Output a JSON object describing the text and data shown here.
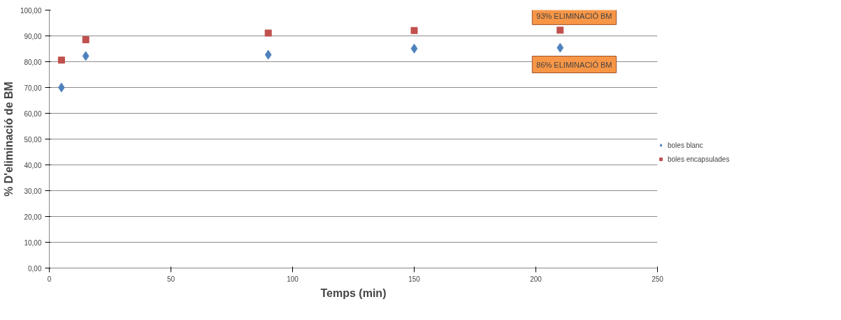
{
  "chart_data": {
    "type": "scatter",
    "xlabel": "Temps (min)",
    "ylabel": "% D'eliminació de BM",
    "series": [
      {
        "name": "boles blanc",
        "color": "#4f81bd",
        "marker": "diamond",
        "x": [
          5,
          15,
          90,
          150,
          210
        ],
        "values": [
          70,
          82.2,
          82.7,
          85.1,
          85.4
        ]
      },
      {
        "name": "boles encapsulades",
        "color": "#c0504d",
        "marker": "square",
        "x": [
          5,
          15,
          90,
          150,
          210
        ],
        "values": [
          80.6,
          88.5,
          91.1,
          92.1,
          92.2
        ]
      }
    ],
    "xlim": [
      0,
      250
    ],
    "xticks": [
      0,
      50,
      100,
      150,
      200,
      250
    ],
    "ylim": [
      0,
      100
    ],
    "yticks": [
      {
        "value": 0,
        "label": "0,00"
      },
      {
        "value": 10,
        "label": "10,00"
      },
      {
        "value": 20,
        "label": "20,00"
      },
      {
        "value": 30,
        "label": "30,00"
      },
      {
        "value": 40,
        "label": "40,00"
      },
      {
        "value": 50,
        "label": "50,00"
      },
      {
        "value": 60,
        "label": "60,00"
      },
      {
        "value": 70,
        "label": "70,00"
      },
      {
        "value": 80,
        "label": "80,00"
      },
      {
        "value": 90,
        "label": "90,00"
      },
      {
        "value": 100,
        "label": "100,00"
      }
    ],
    "grid": "y",
    "legend": "right",
    "annotations": [
      {
        "text": "93% ELIMINACIÓ BM",
        "x": 210,
        "y": 92.2
      },
      {
        "text": "86% ELIMINACIÓ BM",
        "x": 210,
        "y": 85.4
      }
    ]
  }
}
